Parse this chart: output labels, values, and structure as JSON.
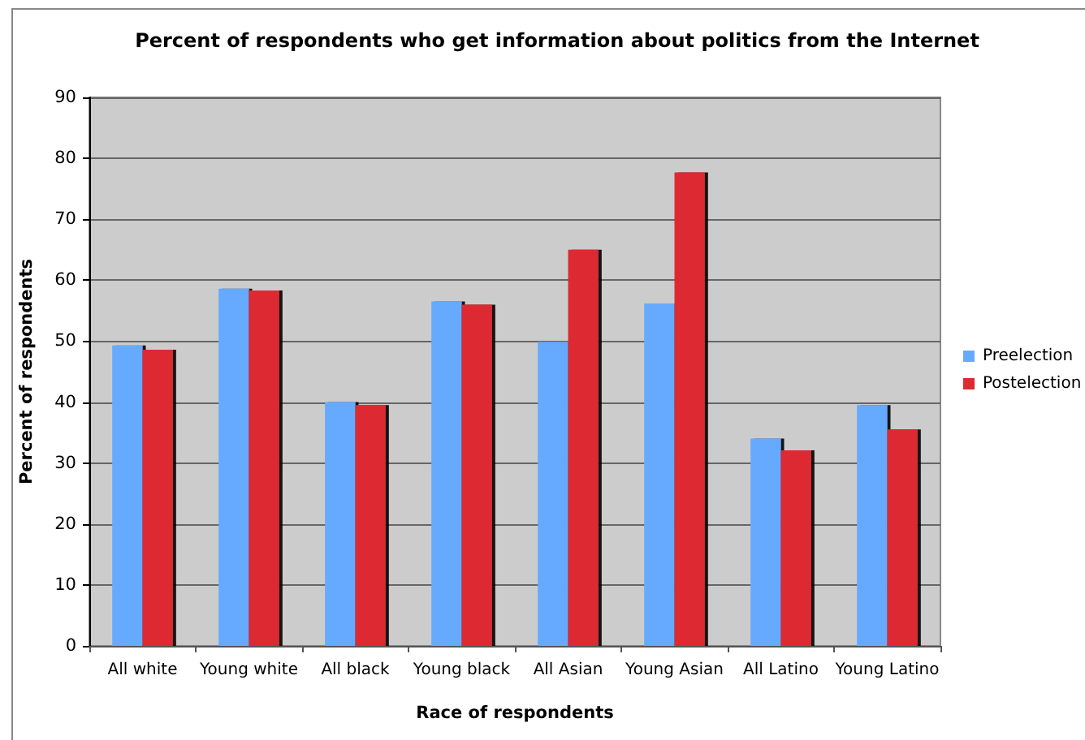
{
  "chart_data": {
    "type": "bar",
    "title": "Percent of respondents who get information about politics from the Internet",
    "xlabel": "Race of respondents",
    "ylabel": "Percent of respondents",
    "categories": [
      "All white",
      "Young white",
      "All black",
      "Young black",
      "All Asian",
      "Young Asian",
      "All Latino",
      "Young Latino"
    ],
    "series": [
      {
        "name": "Preelection",
        "color": "#66aaff",
        "values": [
          49.3,
          58.6,
          40.0,
          56.5,
          49.9,
          56.2,
          34.0,
          39.5
        ]
      },
      {
        "name": "Postelection",
        "color": "#dd2a30",
        "values": [
          48.6,
          58.3,
          39.5,
          56.0,
          65.0,
          77.7,
          32.1,
          35.5
        ]
      }
    ],
    "ylim": [
      0,
      90
    ],
    "yticks": [
      0,
      10,
      20,
      30,
      40,
      50,
      60,
      70,
      80,
      90
    ],
    "grid": "y",
    "legend": "right"
  }
}
